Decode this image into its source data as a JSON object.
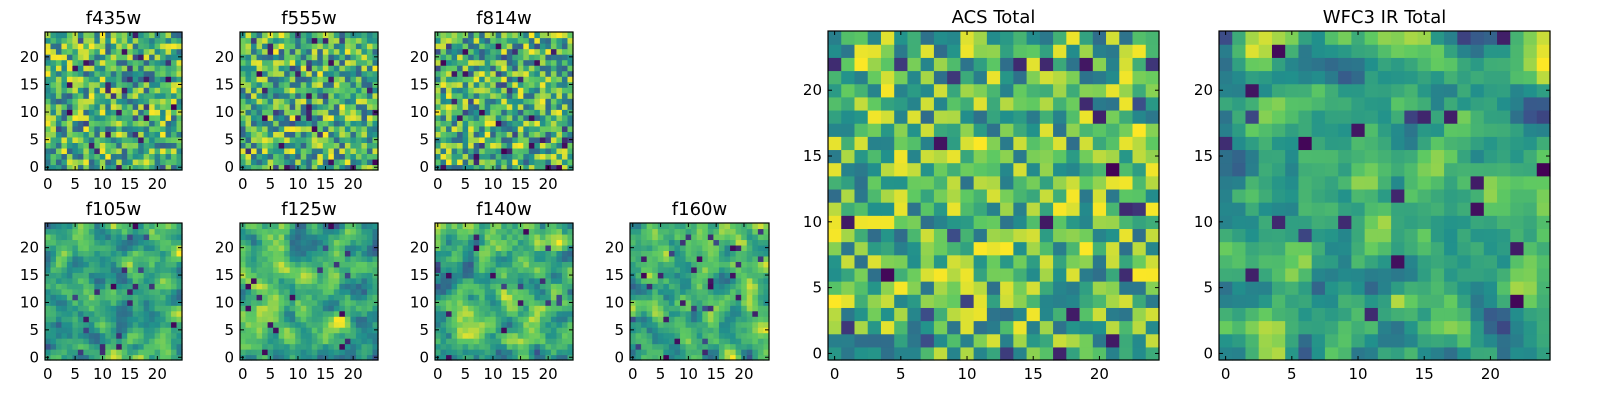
{
  "figure": {
    "colormap": "viridis",
    "colormap_stops": [
      "#440154",
      "#3b528b",
      "#21918c",
      "#5ec962",
      "#fde725"
    ]
  },
  "chart_data": [
    {
      "type": "heatmap",
      "title": "f435w",
      "shape": [
        25,
        25
      ],
      "xlim": [
        -0.5,
        24.5
      ],
      "ylim": [
        -0.5,
        24.5
      ],
      "xticks": [
        0,
        5,
        10,
        15,
        20
      ],
      "yticks": [
        0,
        5,
        10,
        15,
        20
      ],
      "xtick_labels": [
        "0",
        "5",
        "10",
        "15",
        "20"
      ],
      "ytick_labels": [
        "0",
        "5",
        "10",
        "15",
        "20"
      ],
      "seed": 11,
      "smooth": 0,
      "lo": 0.3,
      "hi": 1.0,
      "dark": 0.05
    },
    {
      "type": "heatmap",
      "title": "f555w",
      "shape": [
        25,
        25
      ],
      "xlim": [
        -0.5,
        24.5
      ],
      "ylim": [
        -0.5,
        24.5
      ],
      "xticks": [
        0,
        5,
        10,
        15,
        20
      ],
      "yticks": [
        0,
        5,
        10,
        15,
        20
      ],
      "xtick_labels": [
        "0",
        "5",
        "10",
        "15",
        "20"
      ],
      "ytick_labels": [
        "0",
        "5",
        "10",
        "15",
        "20"
      ],
      "seed": 23,
      "smooth": 0,
      "lo": 0.3,
      "hi": 1.0,
      "dark": 0.05
    },
    {
      "type": "heatmap",
      "title": "f814w",
      "shape": [
        25,
        25
      ],
      "xlim": [
        -0.5,
        24.5
      ],
      "ylim": [
        -0.5,
        24.5
      ],
      "xticks": [
        0,
        5,
        10,
        15,
        20
      ],
      "yticks": [
        0,
        5,
        10,
        15,
        20
      ],
      "xtick_labels": [
        "0",
        "5",
        "10",
        "15",
        "20"
      ],
      "ytick_labels": [
        "0",
        "5",
        "10",
        "15",
        "20"
      ],
      "seed": 37,
      "smooth": 0,
      "lo": 0.3,
      "hi": 1.0,
      "dark": 0.05
    },
    {
      "type": "heatmap",
      "title": "f105w",
      "shape": [
        25,
        25
      ],
      "xlim": [
        -0.5,
        24.5
      ],
      "ylim": [
        -0.5,
        24.5
      ],
      "xticks": [
        0,
        5,
        10,
        15,
        20
      ],
      "yticks": [
        0,
        5,
        10,
        15,
        20
      ],
      "xtick_labels": [
        "0",
        "5",
        "10",
        "15",
        "20"
      ],
      "ytick_labels": [
        "0",
        "5",
        "10",
        "15",
        "20"
      ],
      "seed": 41,
      "smooth": 1,
      "lo": 0.25,
      "hi": 1.0,
      "dark": 0.03
    },
    {
      "type": "heatmap",
      "title": "f125w",
      "shape": [
        25,
        25
      ],
      "xlim": [
        -0.5,
        24.5
      ],
      "ylim": [
        -0.5,
        24.5
      ],
      "xticks": [
        0,
        5,
        10,
        15,
        20
      ],
      "yticks": [
        0,
        5,
        10,
        15,
        20
      ],
      "xtick_labels": [
        "0",
        "5",
        "10",
        "15",
        "20"
      ],
      "ytick_labels": [
        "0",
        "5",
        "10",
        "15",
        "20"
      ],
      "seed": 53,
      "smooth": 1,
      "lo": 0.25,
      "hi": 1.0,
      "dark": 0.03
    },
    {
      "type": "heatmap",
      "title": "f140w",
      "shape": [
        25,
        25
      ],
      "xlim": [
        -0.5,
        24.5
      ],
      "ylim": [
        -0.5,
        24.5
      ],
      "xticks": [
        0,
        5,
        10,
        15,
        20
      ],
      "yticks": [
        0,
        5,
        10,
        15,
        20
      ],
      "xtick_labels": [
        "0",
        "5",
        "10",
        "15",
        "20"
      ],
      "ytick_labels": [
        "0",
        "5",
        "10",
        "15",
        "20"
      ],
      "seed": 67,
      "smooth": 1,
      "lo": 0.25,
      "hi": 1.0,
      "dark": 0.03
    },
    {
      "type": "heatmap",
      "title": "f160w",
      "shape": [
        25,
        25
      ],
      "xlim": [
        -0.5,
        24.5
      ],
      "ylim": [
        -0.5,
        24.5
      ],
      "xticks": [
        0,
        5,
        10,
        15,
        20
      ],
      "yticks": [
        0,
        5,
        10,
        15,
        20
      ],
      "xtick_labels": [
        "0",
        "5",
        "10",
        "15",
        "20"
      ],
      "ytick_labels": [
        "0",
        "5",
        "10",
        "15",
        "20"
      ],
      "seed": 79,
      "smooth": 1,
      "lo": 0.25,
      "hi": 1.0,
      "dark": 0.04
    },
    {
      "type": "heatmap",
      "title": "ACS Total",
      "shape": [
        25,
        25
      ],
      "xlim": [
        -0.5,
        24.5
      ],
      "ylim": [
        -0.5,
        24.5
      ],
      "xticks": [
        0,
        5,
        10,
        15,
        20
      ],
      "yticks": [
        0,
        5,
        10,
        15,
        20
      ],
      "xtick_labels": [
        "0",
        "5",
        "10",
        "15",
        "20"
      ],
      "ytick_labels": [
        "0",
        "5",
        "10",
        "15",
        "20"
      ],
      "seed": 97,
      "smooth": 0,
      "lo": 0.35,
      "hi": 1.0,
      "dark": 0.03
    },
    {
      "type": "heatmap",
      "title": "WFC3 IR Total",
      "shape": [
        25,
        25
      ],
      "xlim": [
        -0.5,
        24.5
      ],
      "ylim": [
        -0.5,
        24.5
      ],
      "xticks": [
        0,
        5,
        10,
        15,
        20
      ],
      "yticks": [
        0,
        5,
        10,
        15,
        20
      ],
      "xtick_labels": [
        "0",
        "5",
        "10",
        "15",
        "20"
      ],
      "ytick_labels": [
        "0",
        "5",
        "10",
        "15",
        "20"
      ],
      "seed": 113,
      "smooth": 1,
      "lo": 0.2,
      "hi": 1.0,
      "dark": 0.03
    }
  ]
}
